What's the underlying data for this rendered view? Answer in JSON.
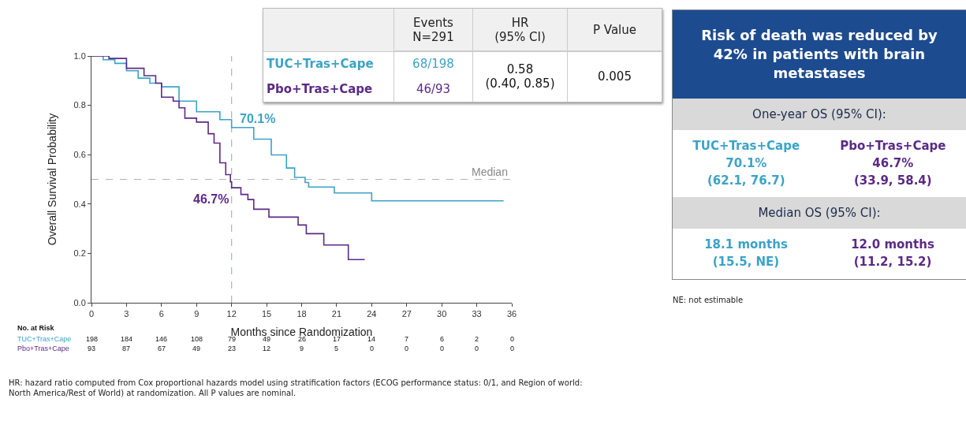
{
  "chart_data": [
    {
      "type": "step",
      "xlabel": "Months since Randomization",
      "ylabel": "Overall Survival Probability",
      "xlim": [
        0,
        36
      ],
      "xticks": [
        0,
        3,
        6,
        9,
        12,
        15,
        18,
        21,
        24,
        27,
        30,
        33,
        36
      ],
      "ylim": [
        0,
        1
      ],
      "yticks": [
        {
          "value": 0,
          "label": "0.0"
        },
        {
          "value": 0.2,
          "label": "0.2"
        },
        {
          "value": 0.4,
          "label": "0.4"
        },
        {
          "value": 0.6,
          "label": "0.6"
        },
        {
          "value": 0.8,
          "label": "0.8"
        },
        {
          "value": 1,
          "label": "1.0"
        }
      ],
      "grid": false,
      "line_style": "solid",
      "series": [
        {
          "name": "TUC+Tras+Cape",
          "color": "#3ba3c8",
          "x": [
            0,
            1,
            2,
            3,
            4,
            5,
            6,
            7.5,
            9,
            11,
            12,
            13.9,
            15.4,
            16.7,
            17.4,
            18.3,
            18.6,
            20.8,
            24,
            35.3
          ],
          "values": [
            1,
            0.985,
            0.97,
            0.94,
            0.91,
            0.89,
            0.875,
            0.817,
            0.774,
            0.742,
            0.71,
            0.663,
            0.599,
            0.546,
            0.508,
            0.487,
            0.469,
            0.445,
            0.413,
            0.413
          ]
        },
        {
          "name": "Pbo+Tras+Cape",
          "color": "#5b2a86",
          "x": [
            0,
            1.5,
            3,
            4.5,
            5.5,
            6,
            7,
            7.5,
            8,
            9,
            10,
            10.5,
            11,
            11.5,
            11.9,
            12,
            12.8,
            13.4,
            13.9,
            15.2,
            17.7,
            18.4,
            19.9,
            22,
            23.4
          ],
          "values": [
            1,
            0.99,
            0.95,
            0.92,
            0.89,
            0.833,
            0.817,
            0.79,
            0.748,
            0.732,
            0.685,
            0.647,
            0.567,
            0.519,
            0.49,
            0.466,
            0.439,
            0.418,
            0.379,
            0.347,
            0.315,
            0.28,
            0.234,
            0.175,
            0.175
          ]
        }
      ],
      "ref_lines": [
        {
          "axis": "y",
          "value": 0.5,
          "label": "Median",
          "color": "#a9b4c2",
          "line_style": "dashed"
        },
        {
          "axis": "x",
          "value": 12,
          "label": null,
          "color": "#a9b4c2",
          "line_style": "dashed"
        }
      ],
      "annotations": [
        {
          "text": "70.1%",
          "x": 12,
          "y": 0.701
        },
        {
          "text": "46.7%",
          "x": 12,
          "y": 0.467
        },
        "No. at Risk",
        "198",
        "184",
        "146",
        "108",
        "79",
        "49",
        "26",
        "17",
        "14",
        "7",
        "6",
        "2",
        "0",
        "93",
        "87",
        "67",
        "49",
        "23",
        "12",
        "9",
        "5",
        "0",
        "0",
        "0",
        "0",
        "0",
        "HR: hazard ratio computed from Cox proportional hazards model using stratification factors (ECOG performance status: 0/1, and Region of world:\nNorth America/Rest of World) at randomization. All P values are nominal."
      ]
    },
    {
      "type": "other",
      "annotations": [
        "Events\nN=291",
        "HR\n(95% CI)",
        "P Value",
        "TUC+Tras+Cape",
        "68/198",
        "0.58\n(0.40, 0.85)",
        "0.005",
        "Pbo+Tras+Cape",
        "46/93"
      ]
    },
    {
      "type": "other",
      "title": "Risk of death was reduced by 42% in patients with brain metastases",
      "annotations": [
        "One-year OS (95% CI):",
        "TUC+Tras+Cape\n70.1%\n(62.1, 76.7)",
        "Pbo+Tras+Cape\n46.7%\n(33.9, 58.4)",
        "Median OS (95% CI):",
        "18.1 months\n(15.5, NE)",
        "12.0 months\n(11.2, 15.2)",
        "NE: not estimable"
      ]
    }
  ]
}
